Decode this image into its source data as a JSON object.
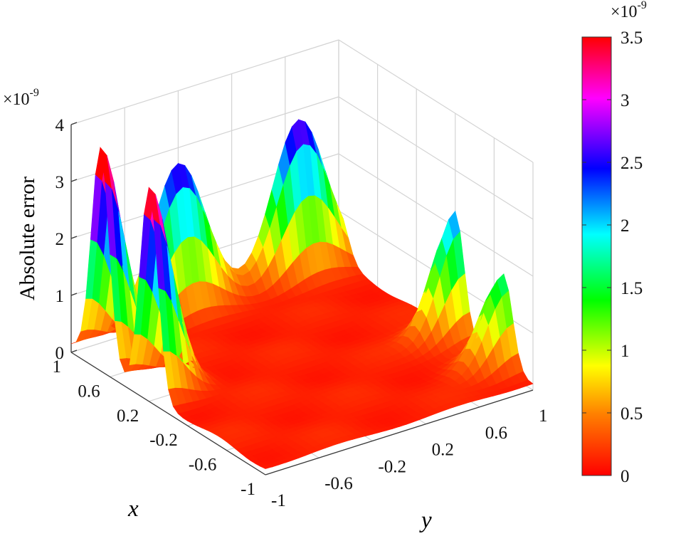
{
  "chart_data": {
    "type": "surface3d",
    "zlabel": "Absolute error",
    "xlabel": "x",
    "ylabel": "y",
    "z_multiplier": "×10",
    "z_exponent": "-9",
    "xlim": [
      -1,
      1
    ],
    "ylim": [
      -1,
      1
    ],
    "zlim": [
      0,
      4
    ],
    "x_ticks": [
      "1",
      "0.6",
      "0.2",
      "-0.2",
      "-0.6",
      "-1"
    ],
    "y_ticks": [
      "-1",
      "-0.6",
      "-0.2",
      "0.2",
      "0.6",
      "1"
    ],
    "z_ticks": [
      "0",
      "1",
      "2",
      "3",
      "4"
    ],
    "colorbar": {
      "range": [
        0,
        3.5
      ],
      "ticks": [
        "0",
        "0.5",
        "1",
        "1.5",
        "2",
        "2.5",
        "3",
        "3.5"
      ],
      "multiplier": "×10",
      "exponent": "-9",
      "colors": [
        "#ff0000",
        "#ff8000",
        "#ffff00",
        "#00ff00",
        "#00ffff",
        "#0000ff",
        "#ff00ff",
        "#ff0000"
      ]
    },
    "grid": true,
    "peaks": [
      {
        "x": 0.2,
        "y": -1.0,
        "z": 3.6
      },
      {
        "x": 0.7,
        "y": -1.0,
        "z": 3.8
      },
      {
        "x": 1.0,
        "y": -0.2,
        "z": 2.6
      },
      {
        "x": 1.0,
        "y": 0.7,
        "z": 2.7
      },
      {
        "x": -0.2,
        "y": 1.0,
        "z": 2.2
      },
      {
        "x": -0.7,
        "y": 1.0,
        "z": 1.6
      }
    ]
  }
}
